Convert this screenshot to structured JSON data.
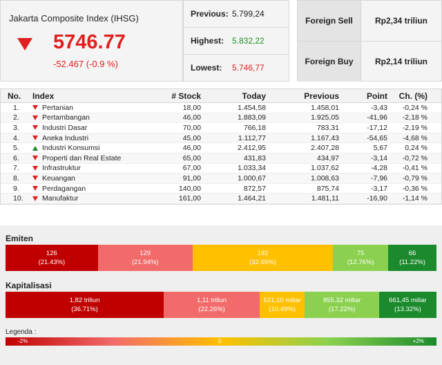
{
  "ihsg": {
    "title": "Jakarta Composite Index (IHSG)",
    "value": "5746.77",
    "change": "-52.467 (-0.9 %)",
    "direction": "down",
    "stats": [
      {
        "label": "Previous:",
        "value": "5.799,24",
        "color": "#222222"
      },
      {
        "label": "Highest:",
        "value": "5.832,22",
        "color": "#1e8c2a"
      },
      {
        "label": "Lowest:",
        "value": "5.746,77",
        "color": "#e02020"
      }
    ]
  },
  "foreign": [
    {
      "label": "Foreign Sell",
      "value": "Rp2,34 triliun"
    },
    {
      "label": "Foreign Buy",
      "value": "Rp2,14 triliun"
    }
  ],
  "table": {
    "headers": {
      "no": "No.",
      "index": "Index",
      "stock": "# Stock",
      "today": "Today",
      "previous": "Previous",
      "point": "Point",
      "change": "Ch. (%)"
    },
    "rows": [
      {
        "no": "1.",
        "name": "Pertanian",
        "dir": "down",
        "stock": "18,00",
        "today": "1.454,58",
        "previous": "1.458,01",
        "point": "-3,43",
        "change": "-0,24 %"
      },
      {
        "no": "2.",
        "name": "Pertambangan",
        "dir": "down",
        "stock": "46,00",
        "today": "1.883,09",
        "previous": "1.925,05",
        "point": "-41,96",
        "change": "-2,18 %"
      },
      {
        "no": "3.",
        "name": "Industri Dasar",
        "dir": "down",
        "stock": "70,00",
        "today": "766,18",
        "previous": "783,31",
        "point": "-17,12",
        "change": "-2,19 %"
      },
      {
        "no": "4.",
        "name": "Aneka Industri",
        "dir": "down",
        "stock": "45,00",
        "today": "1.112,77",
        "previous": "1.167,43",
        "point": "-54,65",
        "change": "-4,68 %"
      },
      {
        "no": "5.",
        "name": "Industri Konsumsi",
        "dir": "up",
        "stock": "46,00",
        "today": "2.412,95",
        "previous": "2.407,28",
        "point": "5,67",
        "change": "0,24 %"
      },
      {
        "no": "6.",
        "name": "Properti dan Real Estate",
        "dir": "down",
        "stock": "65,00",
        "today": "431,83",
        "previous": "434,97",
        "point": "-3,14",
        "change": "-0,72 %"
      },
      {
        "no": "7.",
        "name": "Infrastruktur",
        "dir": "down",
        "stock": "67,00",
        "today": "1.033,34",
        "previous": "1.037,62",
        "point": "-4,28",
        "change": "-0,41 %"
      },
      {
        "no": "8.",
        "name": "Keuangan",
        "dir": "down",
        "stock": "91,00",
        "today": "1.000,67",
        "previous": "1.008,63",
        "point": "-7,96",
        "change": "-0,79 %"
      },
      {
        "no": "9.",
        "name": "Perdagangan",
        "dir": "down",
        "stock": "140,00",
        "today": "872,57",
        "previous": "875,74",
        "point": "-3,17",
        "change": "-0,36 %"
      },
      {
        "no": "10.",
        "name": "Manufaktur",
        "dir": "down",
        "stock": "161,00",
        "today": "1.464,21",
        "previous": "1.481,11",
        "point": "-16,90",
        "change": "-1,14 %"
      }
    ]
  },
  "emiten": {
    "title": "Emiten",
    "segments": [
      {
        "value": "126",
        "pct": "(21.43%)",
        "share": 21.43,
        "color": "#c00000"
      },
      {
        "value": "129",
        "pct": "(21.94%)",
        "share": 21.94,
        "color": "#f26b6b"
      },
      {
        "value": "192",
        "pct": "(32.65%)",
        "share": 32.65,
        "color": "#ffc000"
      },
      {
        "value": "75",
        "pct": "(12.76%)",
        "share": 12.76,
        "color": "#8bd14f"
      },
      {
        "value": "66",
        "pct": "(11.22%)",
        "share": 11.22,
        "color": "#1b8a2c"
      }
    ]
  },
  "kapitalisasi": {
    "title": "Kapitalisasi",
    "segments": [
      {
        "value": "1,82 triliun",
        "pct": "(36.71%)",
        "share": 36.71,
        "color": "#c00000"
      },
      {
        "value": "1,11 triliun",
        "pct": "(22.26%)",
        "share": 22.26,
        "color": "#f26b6b"
      },
      {
        "value": "521,10 miliar",
        "pct": "(10.49%)",
        "share": 10.49,
        "color": "#ffc000"
      },
      {
        "value": "855,32 miliar",
        "pct": "(17.22%)",
        "share": 17.22,
        "color": "#8bd14f"
      },
      {
        "value": "661,45 miliar",
        "pct": "(13.32%)",
        "share": 13.32,
        "color": "#1b8a2c"
      }
    ]
  },
  "legend": {
    "title": "Legenda :",
    "min": "-2%",
    "mid": "0",
    "max": "+2%"
  }
}
